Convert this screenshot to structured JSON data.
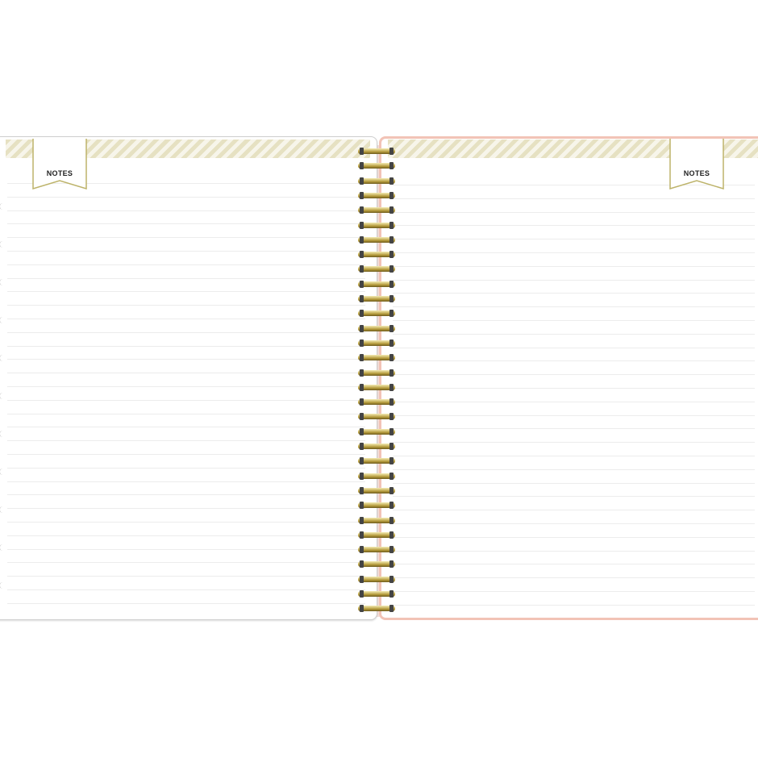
{
  "left_page": {
    "tab_label": "NOTES"
  },
  "right_page": {
    "tab_label": "NOTES"
  },
  "colors": {
    "stripe": "#e6e1c2",
    "tab_border": "#bdb36a",
    "right_cover": "#f2c3b6",
    "coil": "#b59b3c"
  }
}
